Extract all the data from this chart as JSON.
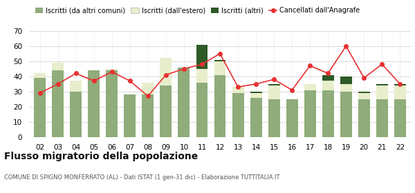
{
  "years": [
    "02",
    "03",
    "04",
    "05",
    "06",
    "07",
    "08",
    "09",
    "10",
    "11",
    "12",
    "13",
    "14",
    "15",
    "16",
    "17",
    "18",
    "19",
    "20",
    "21",
    "22"
  ],
  "iscritti_comuni": [
    39,
    44,
    30,
    44,
    44,
    28,
    28,
    34,
    46,
    36,
    41,
    29,
    26,
    25,
    25,
    31,
    31,
    30,
    25,
    25,
    25
  ],
  "iscritti_estero": [
    3,
    5,
    7,
    0,
    1,
    0,
    8,
    18,
    0,
    9,
    9,
    4,
    3,
    9,
    0,
    4,
    6,
    5,
    4,
    9,
    9
  ],
  "iscritti_altri": [
    0,
    0,
    0,
    0,
    0,
    0,
    0,
    0,
    0,
    16,
    1,
    0,
    1,
    1,
    0,
    0,
    4,
    5,
    1,
    1,
    1
  ],
  "cancellati": [
    29,
    35,
    42,
    37,
    43,
    37,
    27,
    41,
    45,
    48,
    55,
    33,
    35,
    38,
    31,
    47,
    42,
    60,
    39,
    48,
    35
  ],
  "color_comuni": "#8fac7a",
  "color_estero": "#e8eecc",
  "color_altri": "#2d5a27",
  "color_cancellati": "#e83030",
  "background_color": "#ffffff",
  "grid_color": "#cccccc",
  "ylim": [
    0,
    70
  ],
  "yticks": [
    0,
    10,
    20,
    30,
    40,
    50,
    60,
    70
  ],
  "title": "Flusso migratorio della popolazione",
  "subtitle": "COMUNE DI SPIGNO MONFERRATO (AL) - Dati ISTAT (1 gen-31 dic) - Elaborazione TUTTITALIA.IT",
  "legend_labels": [
    "Iscritti (da altri comuni)",
    "Iscritti (dall'estero)",
    "Iscritti (altri)",
    "Cancellati dall'Anagrafe"
  ]
}
